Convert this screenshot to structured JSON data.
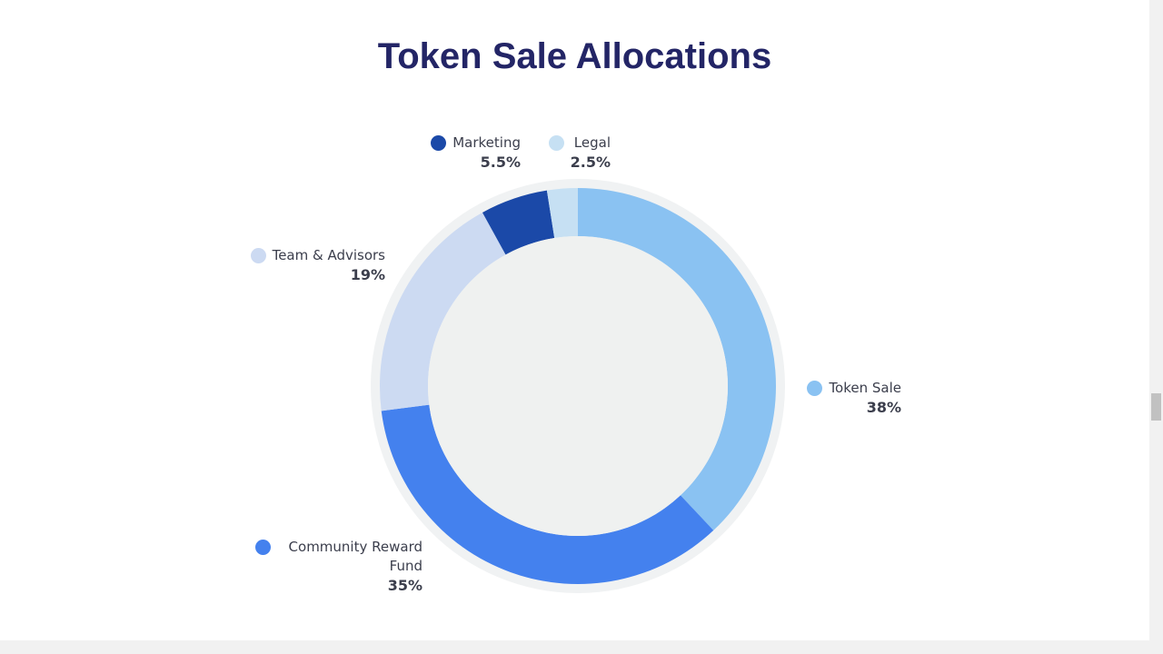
{
  "chart_data": {
    "type": "donut",
    "title": "Token Sale Allocations",
    "categories": [
      "Token Sale",
      "Community Reward Fund",
      "Team & Advisors",
      "Marketing",
      "Legal"
    ],
    "values": [
      38,
      35,
      19,
      5.5,
      2.5
    ],
    "value_labels": [
      "38%",
      "35%",
      "19%",
      "5.5%",
      "2.5%"
    ],
    "colors": [
      "#8ac2f2",
      "#4481ee",
      "#ccdaf2",
      "#1b49a8",
      "#c6e0f3"
    ]
  }
}
